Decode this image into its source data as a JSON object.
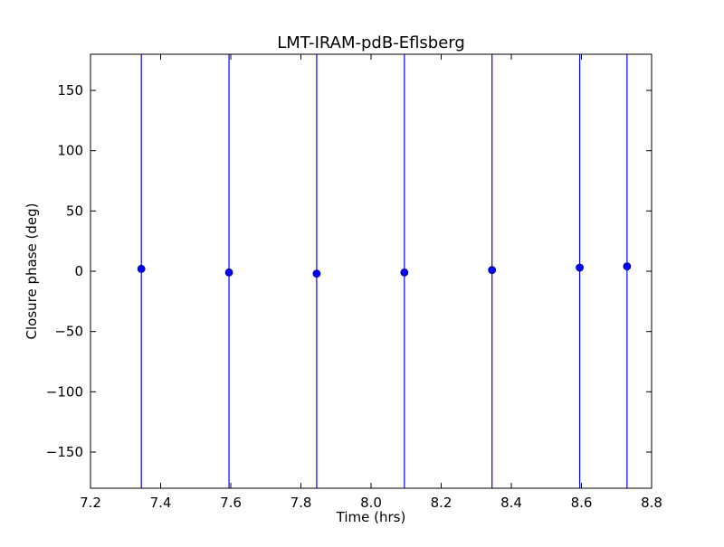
{
  "chart_data": {
    "type": "scatter",
    "title": "LMT-IRAM-pdB-Eflsberg",
    "xlabel": "Time (hrs)",
    "ylabel": "Closure phase (deg)",
    "xlim": [
      7.2,
      8.8
    ],
    "ylim": [
      -180,
      180
    ],
    "x_ticks": [
      7.2,
      7.4,
      7.6,
      7.8,
      8.0,
      8.2,
      8.4,
      8.6,
      8.8
    ],
    "x_tick_labels": [
      "7.2",
      "7.4",
      "7.6",
      "7.8",
      "8.0",
      "8.2",
      "8.4",
      "8.6",
      "8.8"
    ],
    "y_ticks": [
      -150,
      -100,
      -50,
      0,
      50,
      100,
      150
    ],
    "y_tick_labels": [
      "−150",
      "−100",
      "−50",
      "0",
      "50",
      "100",
      "150"
    ],
    "grid": false,
    "legend": "none",
    "series": [
      {
        "x": [
          7.345,
          7.595,
          7.845,
          8.095,
          8.345,
          8.595,
          8.73
        ],
        "y": [
          2,
          -1,
          -2,
          -1,
          1,
          3,
          4
        ],
        "error_bars_extend_beyond_ylim": true,
        "color": "#0000ff",
        "marker": "circle"
      }
    ]
  }
}
